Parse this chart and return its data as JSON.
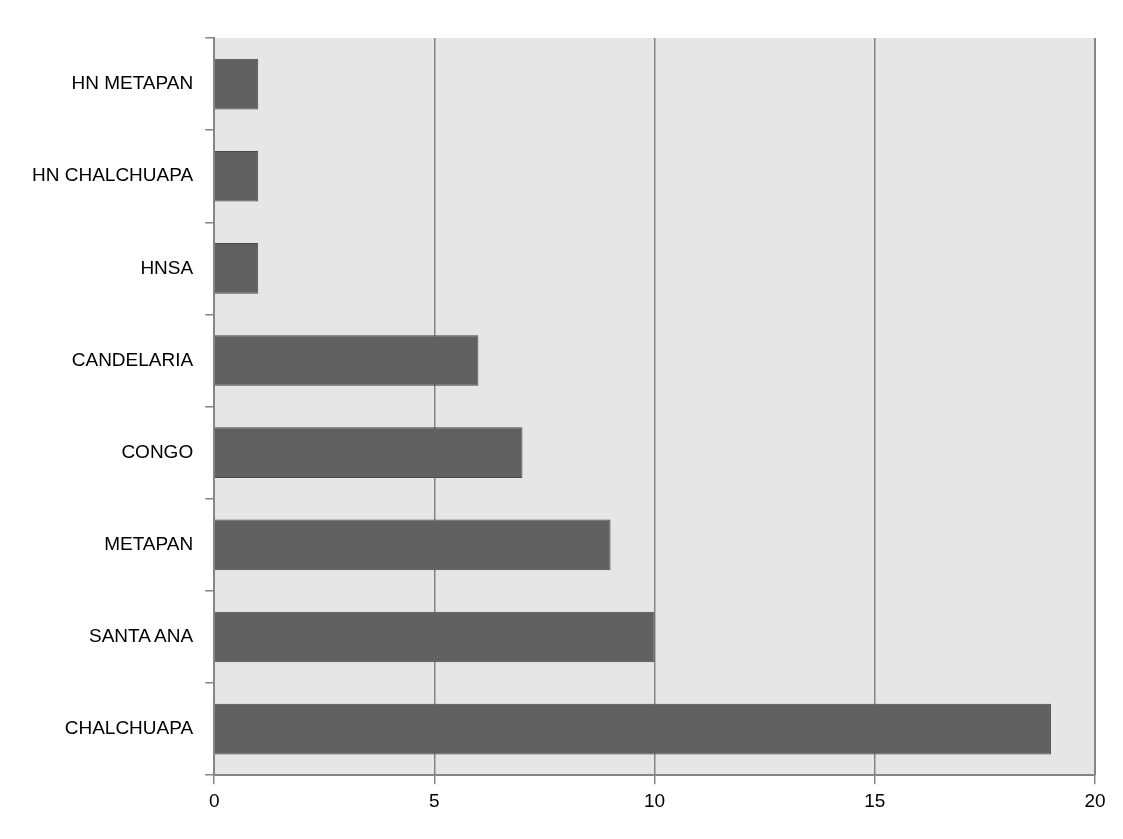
{
  "chart_data": {
    "type": "bar",
    "orientation": "horizontal",
    "categories": [
      "HN METAPAN",
      "HN CHALCHUAPA",
      "HNSA",
      "CANDELARIA",
      "CONGO",
      "METAPAN",
      "SANTA ANA",
      "CHALCHUAPA"
    ],
    "values": [
      1,
      1,
      1,
      6,
      7,
      9,
      10,
      19
    ],
    "color": "#616161",
    "xlim": [
      0,
      20
    ],
    "xticks": [
      0,
      5,
      10,
      15,
      20
    ],
    "grid": "x",
    "legend": false
  }
}
